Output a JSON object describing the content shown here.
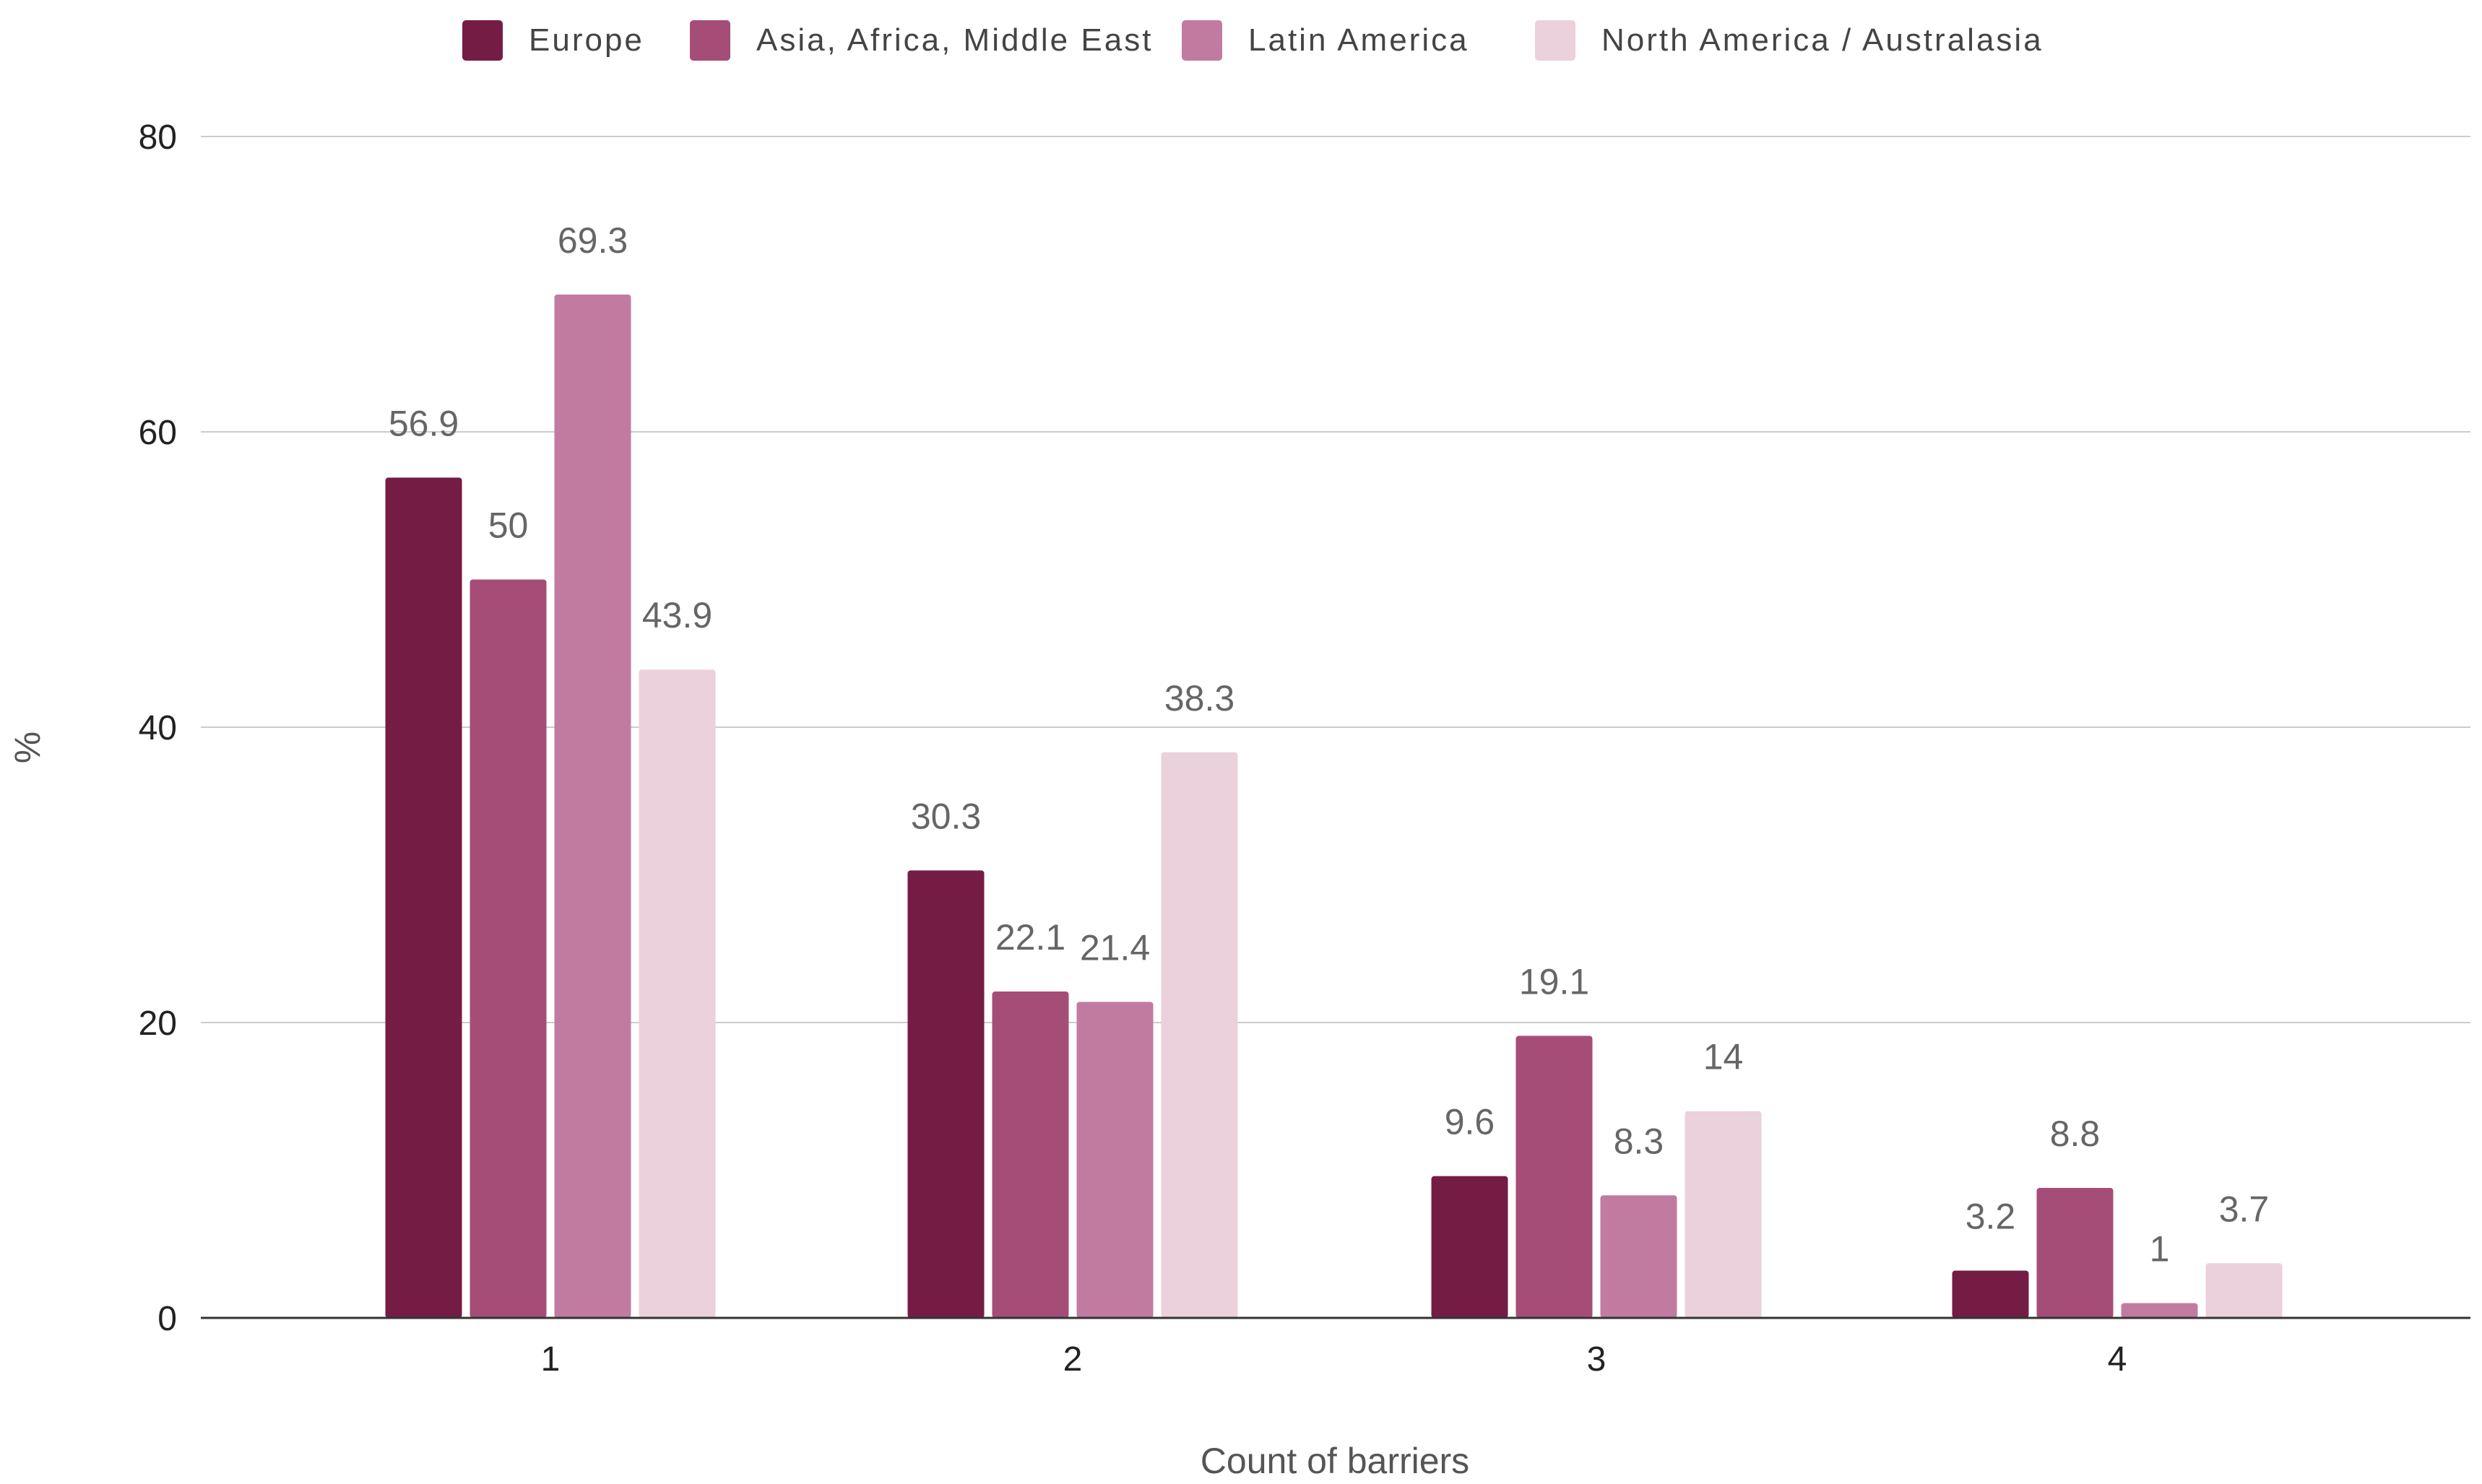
{
  "chart_data": {
    "type": "bar",
    "title": "",
    "xlabel": "Count of barriers",
    "ylabel": "%",
    "categories": [
      "1",
      "2",
      "3",
      "4"
    ],
    "ylim": [
      0,
      80
    ],
    "yticks": [
      0,
      20,
      40,
      60,
      80
    ],
    "grid": true,
    "legend_position": "top",
    "series": [
      {
        "name": "Europe",
        "color": "#751c45",
        "values": [
          56.9,
          30.3,
          9.6,
          3.2
        ],
        "labels": [
          "56.9",
          "30.3",
          "9.6",
          "3.2"
        ]
      },
      {
        "name": "Asia, Africa, Middle East",
        "color": "#a64d77",
        "values": [
          50,
          22.1,
          19.1,
          8.8
        ],
        "labels": [
          "50",
          "22.1",
          "19.1",
          "8.8"
        ]
      },
      {
        "name": "Latin America",
        "color": "#c27ba0",
        "values": [
          69.3,
          21.4,
          8.3,
          1
        ],
        "labels": [
          "69.3",
          "21.4",
          "8.3",
          "1"
        ]
      },
      {
        "name": "North America / Australasia",
        "color": "#ead1dc",
        "values": [
          43.9,
          38.3,
          14,
          3.7
        ],
        "labels": [
          "43.9",
          "38.3",
          "14",
          "3.7"
        ]
      }
    ]
  }
}
